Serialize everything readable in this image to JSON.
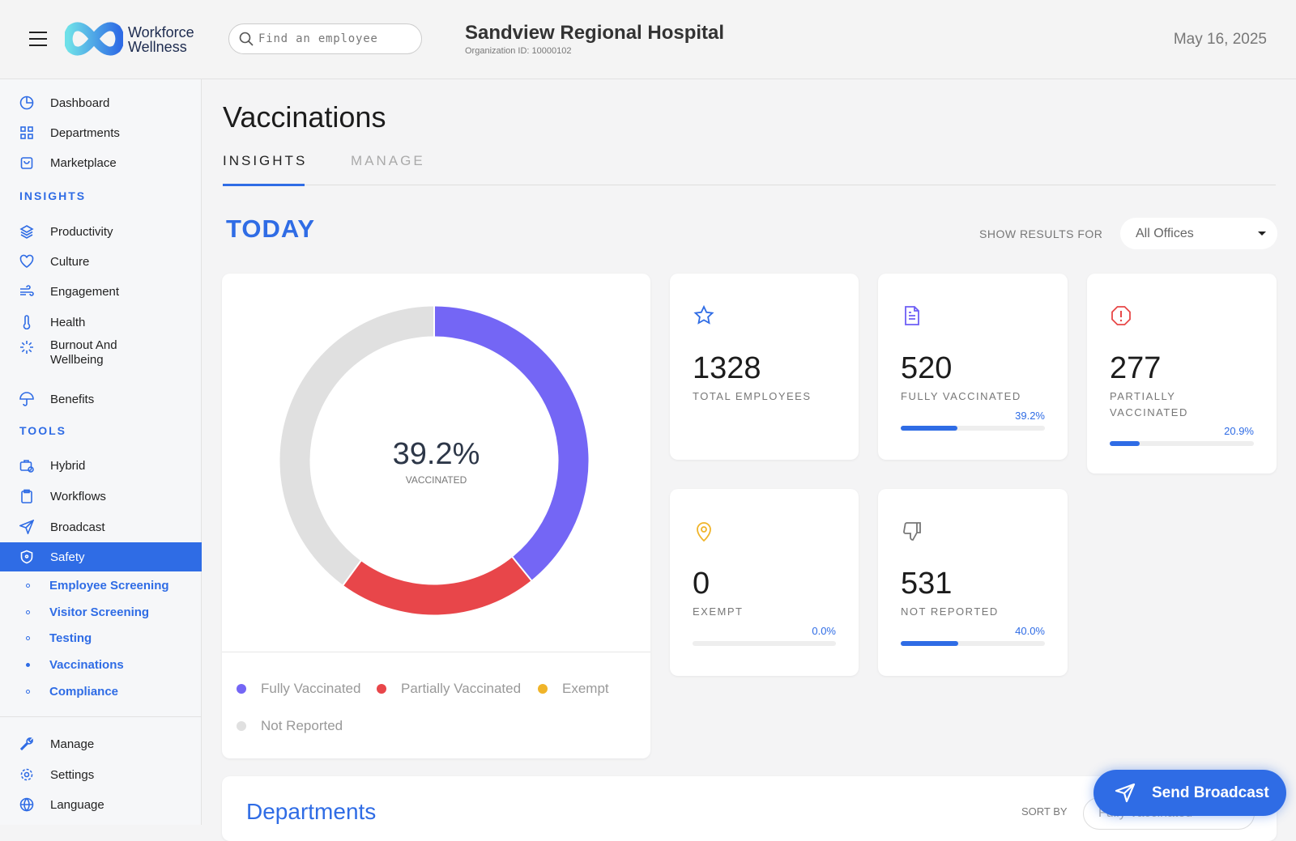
{
  "header": {
    "brand_line1": "Workforce",
    "brand_line2": "Wellness",
    "search_placeholder": "Find an employee",
    "org_name": "Sandview Regional Hospital",
    "org_id": "Organization ID: 10000102",
    "date": "May 16, 2025"
  },
  "sidebar": {
    "top": [
      {
        "label": "Dashboard"
      },
      {
        "label": "Departments"
      },
      {
        "label": "Marketplace"
      }
    ],
    "insights_heading": "INSIGHTS",
    "insights": [
      {
        "label": "Productivity"
      },
      {
        "label": "Culture"
      },
      {
        "label": "Engagement"
      },
      {
        "label": "Health"
      },
      {
        "label": "Burnout And Wellbeing"
      },
      {
        "label": "Benefits"
      }
    ],
    "tools_heading": "TOOLS",
    "tools": [
      {
        "label": "Hybrid"
      },
      {
        "label": "Workflows"
      },
      {
        "label": "Broadcast"
      },
      {
        "label": "Safety"
      }
    ],
    "safety_sub": [
      {
        "label": "Employee Screening"
      },
      {
        "label": "Visitor Screening"
      },
      {
        "label": "Testing"
      },
      {
        "label": "Vaccinations"
      },
      {
        "label": "Compliance"
      }
    ],
    "bottom": [
      {
        "label": "Manage"
      },
      {
        "label": "Settings"
      },
      {
        "label": "Language"
      }
    ]
  },
  "main": {
    "title": "Vaccinations",
    "tabs": [
      {
        "label": "INSIGHTS"
      },
      {
        "label": "MANAGE"
      }
    ],
    "today": "TODAY",
    "show_results_label": "SHOW RESULTS FOR",
    "office_select": "All Offices",
    "donut": {
      "center_value": "39.2%",
      "center_label": "VACCINATED"
    },
    "stats": [
      {
        "value": "1328",
        "label": "TOTAL EMPLOYEES",
        "color": "#2f6ce5"
      },
      {
        "value": "520",
        "label": "FULLY VACCINATED",
        "percent_label": "39.2%",
        "percent": 39.2,
        "color": "#6d5ef5"
      },
      {
        "value": "277",
        "label": "PARTIALLY VACCINATED",
        "percent_label": "20.9%",
        "percent": 20.9,
        "color": "#e84848"
      },
      {
        "value": "0",
        "label": "EXEMPT",
        "percent_label": "0.0%",
        "percent": 0,
        "color": "#f0b429"
      },
      {
        "value": "531",
        "label": "NOT REPORTED",
        "percent_label": "40.0%",
        "percent": 40.0,
        "color": "#888888"
      }
    ],
    "departments_title": "Departments",
    "sort_by_label": "SORT BY",
    "sort_select": "Fully Vaccinated",
    "send_broadcast": "Send Broadcast"
  },
  "chart_data": {
    "type": "pie",
    "title": "",
    "center_value": "39.2%",
    "center_label": "VACCINATED",
    "categories": [
      "Fully Vaccinated",
      "Partially Vaccinated",
      "Exempt",
      "Not Reported"
    ],
    "values": [
      39.2,
      20.9,
      0.0,
      40.0
    ],
    "colors": [
      "#7466f5",
      "#e8464a",
      "#f0b429",
      "#e0e0e0"
    ],
    "legend": "bottom"
  }
}
